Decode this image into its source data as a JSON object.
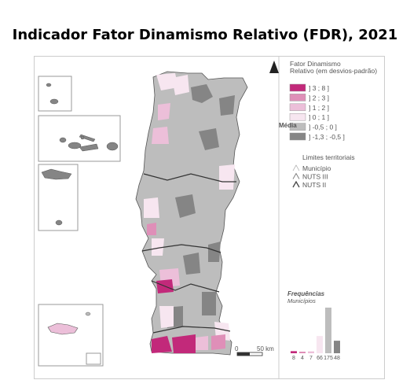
{
  "title": "Indicador Fator Dinamismo Relativo (FDR), 2021",
  "legend": {
    "heading_line1": "Fator Dinamismo",
    "heading_line2": "Relativo (em desvios-padrão)",
    "media_label": "Média",
    "classes": [
      {
        "label": "] 3 ; 8 ]",
        "color": "#c2297a"
      },
      {
        "label": "] 2 ; 3 ]",
        "color": "#df8fb8"
      },
      {
        "label": "] 1 ; 2 ]",
        "color": "#ecbfd9"
      },
      {
        "label": "] 0 ; 1 ]",
        "color": "#f7e6f0"
      },
      {
        "label": "] -0,5 ; 0 ]",
        "color": "#bdbdbd"
      },
      {
        "label": "] -1,3 ; -0,5 ]",
        "color": "#858585"
      }
    ],
    "limits_heading": "Limites territoriais",
    "limits": [
      {
        "label": "Município",
        "icon": "municipio-line-icon"
      },
      {
        "label": "NUTS III",
        "icon": "nuts3-line-icon"
      },
      {
        "label": "NUTS II",
        "icon": "nuts2-line-icon"
      }
    ]
  },
  "frequencies": {
    "heading": "Frequências",
    "subheading": "Municípios",
    "values": [
      8,
      4,
      7,
      66,
      175,
      48
    ],
    "labels": [
      "8",
      "4",
      "7",
      "66",
      "175",
      "48"
    ]
  },
  "scale_bar": {
    "start": "0",
    "end": "50 km"
  },
  "north_arrow": "north-arrow-icon",
  "colors": {
    "frame": "#cccccc",
    "land_base": "#bdbdbd",
    "land_dark": "#858585",
    "sea": "#ffffff"
  }
}
